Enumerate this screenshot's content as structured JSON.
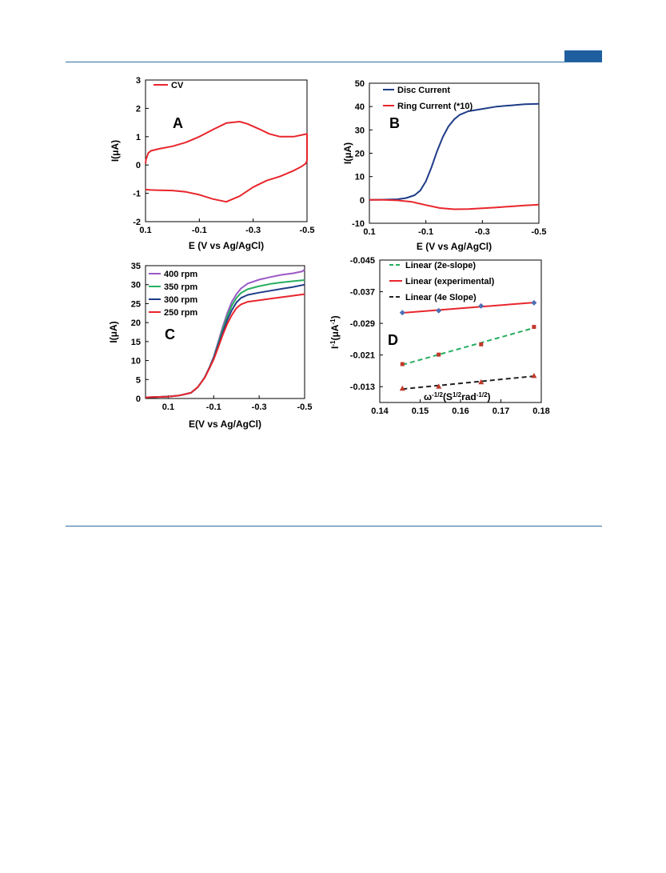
{
  "chart_data": [
    {
      "type": "line",
      "panel_letter": "A",
      "xlabel": "E (V vs Ag/AgCl)",
      "ylabel": "I(μA)",
      "xlim": [
        0.1,
        -0.5
      ],
      "ylim": [
        -2,
        3
      ],
      "x_ticks": [
        "0.1",
        "-0.1",
        "-0.3",
        "-0.5"
      ],
      "y_ticks": [
        "3",
        "2",
        "1",
        "0",
        "-1",
        "-2"
      ],
      "legend_position": "top-left",
      "series": [
        {
          "name": "CV",
          "color": "#e8262c",
          "x": [
            0.1,
            0.098,
            0.09,
            0.08,
            0.05,
            0.0,
            -0.05,
            -0.1,
            -0.15,
            -0.2,
            -0.25,
            -0.28,
            -0.32,
            -0.36,
            -0.4,
            -0.45,
            -0.49,
            -0.5,
            -0.5,
            -0.495,
            -0.48,
            -0.45,
            -0.4,
            -0.35,
            -0.3,
            -0.25,
            -0.2,
            -0.15,
            -0.1,
            -0.05,
            0.0,
            0.05,
            0.08,
            0.098,
            0.1
          ],
          "y": [
            0.05,
            0.2,
            0.42,
            0.5,
            0.57,
            0.66,
            0.8,
            1.0,
            1.25,
            1.48,
            1.53,
            1.45,
            1.28,
            1.1,
            1.0,
            1.0,
            1.08,
            1.1,
            0.15,
            0.05,
            -0.05,
            -0.2,
            -0.4,
            -0.55,
            -0.78,
            -1.1,
            -1.3,
            -1.2,
            -1.05,
            -0.95,
            -0.9,
            -0.89,
            -0.88,
            -0.87,
            -0.85
          ]
        }
      ]
    },
    {
      "type": "line",
      "panel_letter": "B",
      "xlabel": "E (V vs Ag/AgCl)",
      "ylabel": "I(μA)",
      "xlim": [
        0.1,
        -0.5
      ],
      "ylim": [
        -10,
        50
      ],
      "x_ticks": [
        "0.1",
        "-0.1",
        "-0.3",
        "-0.5"
      ],
      "y_ticks": [
        "50",
        "40",
        "30",
        "20",
        "10",
        "0",
        "-10"
      ],
      "legend_position": "top-left",
      "series": [
        {
          "name": "Disc Current",
          "color": "#1f3c88",
          "x": [
            0.1,
            0.05,
            0.0,
            -0.03,
            -0.06,
            -0.08,
            -0.1,
            -0.12,
            -0.14,
            -0.16,
            -0.18,
            -0.2,
            -0.22,
            -0.25,
            -0.3,
            -0.35,
            -0.4,
            -0.45,
            -0.5
          ],
          "y": [
            0.0,
            0.1,
            0.3,
            0.8,
            2.0,
            4.0,
            8.0,
            14.0,
            21.0,
            27.0,
            31.5,
            34.5,
            36.5,
            38.0,
            39.0,
            40.0,
            40.5,
            41.0,
            41.2
          ]
        },
        {
          "name": "Ring Current (*10)",
          "color": "#e8262c",
          "x": [
            0.1,
            0.05,
            0.0,
            -0.05,
            -0.1,
            -0.15,
            -0.2,
            -0.25,
            -0.3,
            -0.35,
            -0.4,
            -0.45,
            -0.5
          ],
          "y": [
            0.0,
            0.0,
            -0.2,
            -0.8,
            -2.2,
            -3.5,
            -4.0,
            -3.9,
            -3.6,
            -3.2,
            -2.8,
            -2.4,
            -2.0
          ]
        }
      ]
    },
    {
      "type": "line",
      "panel_letter": "C",
      "xlabel": "E(V vs Ag/AgCl)",
      "ylabel": "I(μA)",
      "xlim": [
        0.2,
        -0.5
      ],
      "ylim": [
        0,
        35
      ],
      "x_ticks": [
        "0.1",
        "-0.1",
        "-0.3",
        "-0.5"
      ],
      "y_ticks": [
        "35",
        "30",
        "25",
        "20",
        "15",
        "10",
        "5",
        "0"
      ],
      "legend_position": "top-left",
      "series": [
        {
          "name": "400 rpm",
          "color": "#9b59c6",
          "x": [
            0.2,
            0.1,
            0.05,
            0.0,
            -0.03,
            -0.06,
            -0.08,
            -0.1,
            -0.12,
            -0.14,
            -0.16,
            -0.18,
            -0.2,
            -0.22,
            -0.25,
            -0.3,
            -0.35,
            -0.4,
            -0.45,
            -0.49,
            -0.5
          ],
          "y": [
            0.3,
            0.5,
            0.8,
            1.5,
            3.0,
            5.5,
            8.0,
            11.0,
            15.0,
            19.0,
            22.5,
            25.5,
            27.5,
            29.0,
            30.3,
            31.3,
            32.0,
            32.6,
            33.0,
            33.5,
            34.0
          ]
        },
        {
          "name": "350 rpm",
          "color": "#27ae60",
          "x": [
            0.2,
            0.1,
            0.05,
            0.0,
            -0.03,
            -0.06,
            -0.08,
            -0.1,
            -0.12,
            -0.14,
            -0.16,
            -0.18,
            -0.2,
            -0.22,
            -0.25,
            -0.3,
            -0.35,
            -0.4,
            -0.45,
            -0.5
          ],
          "y": [
            0.3,
            0.5,
            0.8,
            1.5,
            3.0,
            5.5,
            8.0,
            10.8,
            14.5,
            18.3,
            21.7,
            24.5,
            26.5,
            27.8,
            28.8,
            29.6,
            30.2,
            30.6,
            30.9,
            31.2
          ]
        },
        {
          "name": "300 rpm",
          "color": "#1f3c88",
          "x": [
            0.2,
            0.1,
            0.05,
            0.0,
            -0.03,
            -0.06,
            -0.08,
            -0.1,
            -0.12,
            -0.14,
            -0.16,
            -0.18,
            -0.2,
            -0.22,
            -0.25,
            -0.3,
            -0.35,
            -0.4,
            -0.45,
            -0.5
          ],
          "y": [
            0.3,
            0.5,
            0.8,
            1.5,
            3.0,
            5.5,
            8.0,
            10.6,
            14.0,
            17.5,
            20.7,
            23.3,
            25.3,
            26.5,
            27.3,
            27.9,
            28.4,
            28.9,
            29.4,
            30.0
          ]
        },
        {
          "name": "250 rpm",
          "color": "#e8262c",
          "x": [
            0.2,
            0.1,
            0.05,
            0.0,
            -0.03,
            -0.06,
            -0.08,
            -0.1,
            -0.12,
            -0.14,
            -0.16,
            -0.18,
            -0.2,
            -0.22,
            -0.25,
            -0.3,
            -0.35,
            -0.4,
            -0.45,
            -0.5
          ],
          "y": [
            0.3,
            0.5,
            0.8,
            1.5,
            3.0,
            5.4,
            7.8,
            10.3,
            13.5,
            16.8,
            19.7,
            22.0,
            23.8,
            24.8,
            25.5,
            25.9,
            26.3,
            26.7,
            27.1,
            27.5
          ]
        }
      ]
    },
    {
      "type": "scatter",
      "panel_letter": "D",
      "xlabel": "ω^-1/2 (S^1/2 rad^-1/2)",
      "ylabel": "I^-1 (μA^-1)",
      "xlim": [
        0.14,
        0.18
      ],
      "ylim": [
        -0.009,
        -0.045
      ],
      "x_ticks": [
        "0.14",
        "0.15",
        "0.16",
        "0.17",
        "0.18"
      ],
      "y_ticks": [
        "-0.045",
        "-0.037",
        "-0.029",
        "-0.021",
        "-0.013"
      ],
      "legend_position": "top-left",
      "series": [
        {
          "name": "Linear (2e-slope)",
          "color": "#27ae60",
          "dashed": true,
          "marker": "square",
          "marker_color": "#c0392b",
          "x": [
            0.1456,
            0.1546,
            0.1651,
            0.1782
          ],
          "y": [
            -0.0187,
            -0.0211,
            -0.0237,
            -0.0281
          ]
        },
        {
          "name": "Linear (experimental)",
          "color": "#e8262c",
          "dashed": false,
          "marker": "diamond",
          "marker_color": "#4e6fb5",
          "x": [
            0.1456,
            0.1546,
            0.1651,
            0.1782
          ],
          "y": [
            -0.0317,
            -0.0322,
            -0.0334,
            -0.0342
          ]
        },
        {
          "name": "Linear (4e Slope)",
          "color": "#222222",
          "dashed": true,
          "marker": "triangle",
          "marker_color": "#c0392b",
          "x": [
            0.1456,
            0.1546,
            0.1651,
            0.1782
          ],
          "y": [
            -0.0126,
            -0.0131,
            -0.0142,
            -0.0158
          ]
        }
      ]
    }
  ]
}
